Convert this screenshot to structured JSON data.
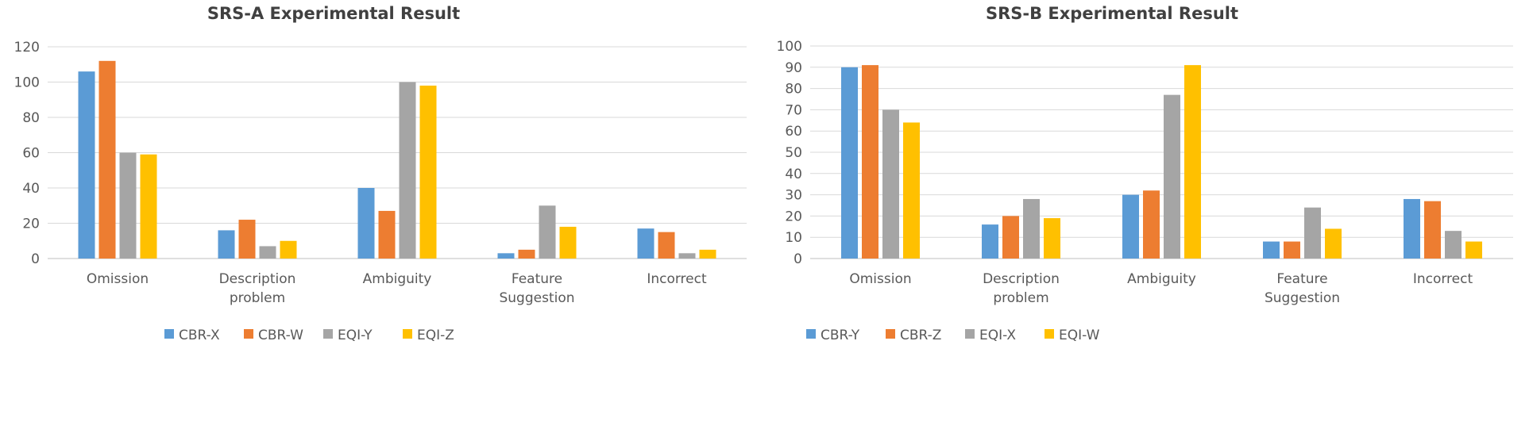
{
  "chart_data": [
    {
      "type": "bar",
      "title": "SRS-A Experimental Result",
      "categories": [
        "Omission",
        "Description problem",
        "Ambiguity",
        "Feature Suggestion",
        "Incorrect"
      ],
      "category_lines": [
        [
          "Omission"
        ],
        [
          "Description",
          "problem"
        ],
        [
          "Ambiguity"
        ],
        [
          "Feature",
          "Suggestion"
        ],
        [
          "Incorrect"
        ]
      ],
      "series": [
        {
          "name": "CBR-X",
          "color": "#5B9BD5",
          "values": [
            106,
            16,
            40,
            3,
            17
          ]
        },
        {
          "name": "CBR-W",
          "color": "#ED7D31",
          "values": [
            112,
            22,
            27,
            5,
            15
          ]
        },
        {
          "name": "EQI-Y",
          "color": "#A5A5A5",
          "values": [
            60,
            7,
            100,
            30,
            3
          ]
        },
        {
          "name": "EQI-Z",
          "color": "#FFC000",
          "values": [
            59,
            10,
            98,
            18,
            5
          ]
        }
      ],
      "ylim": [
        0,
        120
      ],
      "yticks": [
        0,
        20,
        40,
        60,
        80,
        100,
        120
      ],
      "grid": true,
      "legend": "bottom"
    },
    {
      "type": "bar",
      "title": "SRS-B Experimental Result",
      "categories": [
        "Omission",
        "Description problem",
        "Ambiguity",
        "Feature Suggestion",
        "Incorrect"
      ],
      "category_lines": [
        [
          "Omission"
        ],
        [
          "Description",
          "problem"
        ],
        [
          "Ambiguity"
        ],
        [
          "Feature",
          "Suggestion"
        ],
        [
          "Incorrect"
        ]
      ],
      "series": [
        {
          "name": "CBR-Y",
          "color": "#5B9BD5",
          "values": [
            90,
            16,
            30,
            8,
            28
          ]
        },
        {
          "name": "CBR-Z",
          "color": "#ED7D31",
          "values": [
            91,
            20,
            32,
            8,
            27
          ]
        },
        {
          "name": "EQI-X",
          "color": "#A5A5A5",
          "values": [
            70,
            28,
            77,
            24,
            13
          ]
        },
        {
          "name": "EQI-W",
          "color": "#FFC000",
          "values": [
            64,
            19,
            91,
            14,
            8
          ]
        }
      ],
      "ylim": [
        0,
        100
      ],
      "yticks": [
        0,
        10,
        20,
        30,
        40,
        50,
        60,
        70,
        80,
        90,
        100
      ],
      "grid": true,
      "legend": "bottom"
    }
  ]
}
